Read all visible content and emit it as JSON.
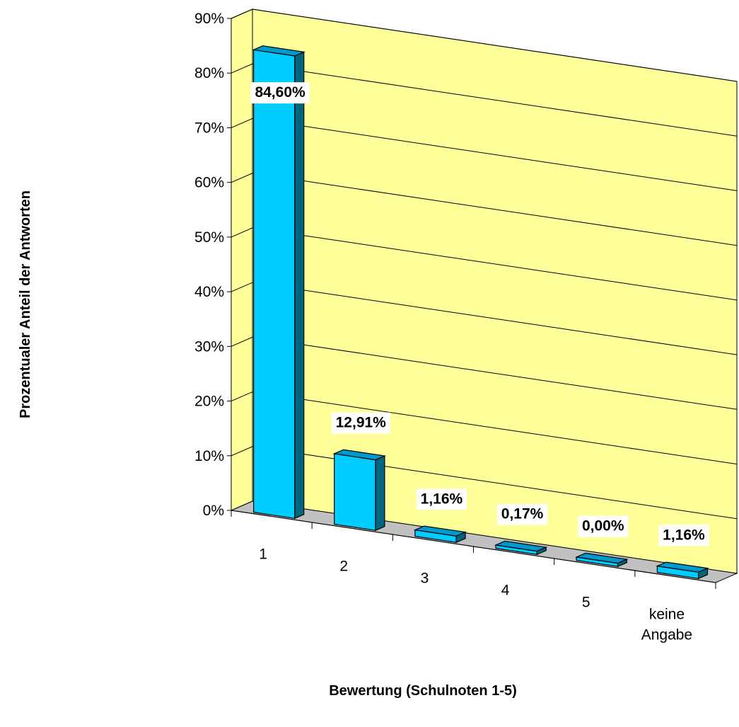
{
  "chart_data": {
    "type": "bar",
    "title": "",
    "xlabel": "Bewertung (Schulnoten 1-5)",
    "ylabel": "Prozentualer Anteil der Antworten",
    "categories": [
      "1",
      "2",
      "3",
      "4",
      "5",
      "keine Angabe"
    ],
    "category_lines": [
      [
        "1"
      ],
      [
        "2"
      ],
      [
        "3"
      ],
      [
        "4"
      ],
      [
        "5"
      ],
      [
        "keine",
        "Angabe"
      ]
    ],
    "values": [
      84.6,
      12.91,
      1.16,
      0.17,
      0.0,
      1.16
    ],
    "value_labels": [
      "84,60%",
      "12,91%",
      "1,16%",
      "0,17%",
      "0,00%",
      "1,16%"
    ],
    "ylim": [
      0,
      90
    ],
    "yticks": [
      0,
      10,
      20,
      30,
      40,
      50,
      60,
      70,
      80,
      90
    ],
    "ytick_labels": [
      "0%",
      "10%",
      "20%",
      "30%",
      "40%",
      "50%",
      "60%",
      "70%",
      "80%",
      "90%"
    ],
    "grid": true,
    "legend": "none",
    "colors": {
      "wall": "#ffff99",
      "floor": "#c0c0c0",
      "bar_front": "#00ccff",
      "bar_top": "#0099cc",
      "bar_side": "#006680",
      "label_bg": "#ffffff"
    }
  }
}
